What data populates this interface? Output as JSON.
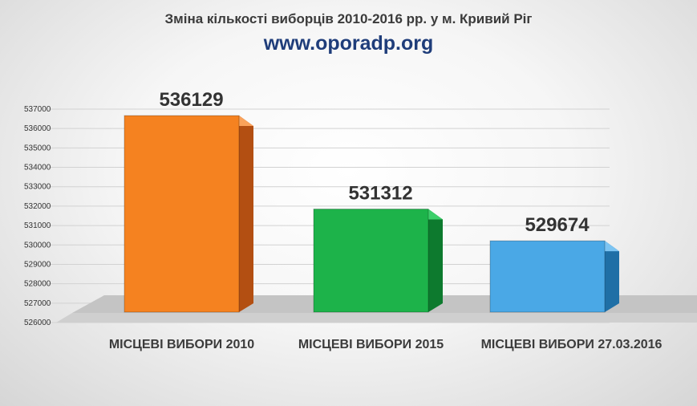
{
  "chart_data": {
    "type": "bar",
    "title": "Зміна кількості виборців 2010-2016 рр. у м. Кривий Ріг",
    "subtitle": "www.oporadp.org",
    "categories": [
      "МІСЦЕВІ ВИБОРИ 2010",
      "МІСЦЕВІ ВИБОРИ 2015",
      "МІСЦЕВІ ВИБОРИ 27.03.2016"
    ],
    "values": [
      536129,
      531312,
      529674
    ],
    "data_labels": [
      "536129",
      "531312",
      "529674"
    ],
    "colors": [
      "#f58220",
      "#1db34a",
      "#4aa8e6"
    ],
    "side_colors": [
      "#b34f12",
      "#0d7a2e",
      "#1f6fa6"
    ],
    "top_colors": [
      "#f9a25a",
      "#3ccf6a",
      "#7cc4f2"
    ],
    "ylim": [
      526000,
      537000
    ],
    "yticks": [
      526000,
      527000,
      528000,
      529000,
      530000,
      531000,
      532000,
      533000,
      534000,
      535000,
      536000,
      537000
    ],
    "ytick_labels": [
      "526000",
      "527000",
      "528000",
      "529000",
      "530000",
      "531000",
      "532000",
      "533000",
      "534000",
      "535000",
      "536000",
      "537000"
    ],
    "grid": true,
    "legend": "none",
    "xlabel": "",
    "ylabel": ""
  }
}
